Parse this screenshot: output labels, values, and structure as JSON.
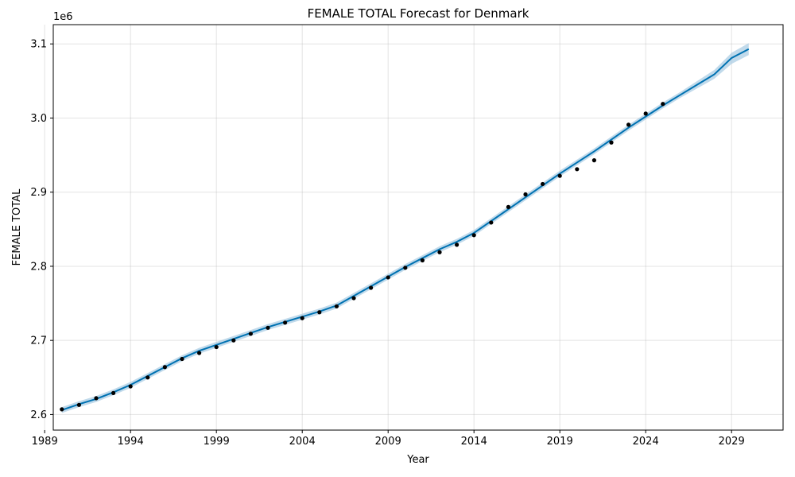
{
  "chart_data": {
    "type": "line",
    "title": "FEMALE TOTAL Forecast for Denmark",
    "xlabel": "Year",
    "ylabel": "FEMALE TOTAL",
    "y_offset_label": "1e6",
    "x_ticks": [
      "1989",
      "1994",
      "1999",
      "2004",
      "2009",
      "2014",
      "2019",
      "2024",
      "2029"
    ],
    "y_ticks": [
      "2.6",
      "2.7",
      "2.8",
      "2.9",
      "3.0",
      "3.1"
    ],
    "xlim": [
      1989.5,
      2032
    ],
    "ylim": [
      2579000,
      3126000
    ],
    "grid": true,
    "colors": {
      "forecast": "#0072B2",
      "interval": "#a6cbe3",
      "observed": "#000000"
    },
    "observed": {
      "x": [
        1990,
        1991,
        1992,
        1993,
        1994,
        1995,
        1996,
        1997,
        1998,
        1999,
        2000,
        2001,
        2002,
        2003,
        2004,
        2005,
        2006,
        2007,
        2008,
        2009,
        2010,
        2011,
        2012,
        2013,
        2014,
        2015,
        2016,
        2017,
        2018,
        2019,
        2020,
        2021,
        2022,
        2023,
        2024,
        2025
      ],
      "y": [
        2607000,
        2613000,
        2622000,
        2629000,
        2638000,
        2650000,
        2664000,
        2675000,
        2683000,
        2691000,
        2700000,
        2709000,
        2717000,
        2724000,
        2730000,
        2738000,
        2746000,
        2757000,
        2771000,
        2785000,
        2798000,
        2808000,
        2819000,
        2829000,
        2842000,
        2859000,
        2880000,
        2897000,
        2911000,
        2922000,
        2931000,
        2943000,
        2967000,
        2991000,
        3006000,
        3019000
      ]
    },
    "forecast": {
      "x": [
        1990,
        1991,
        1992,
        1993,
        1994,
        1995,
        1996,
        1997,
        1998,
        1999,
        2000,
        2001,
        2002,
        2003,
        2004,
        2005,
        2006,
        2007,
        2008,
        2009,
        2010,
        2011,
        2012,
        2013,
        2014,
        2015,
        2016,
        2017,
        2018,
        2019,
        2020,
        2021,
        2022,
        2023,
        2024,
        2025,
        2026,
        2027,
        2028,
        2029,
        2030
      ],
      "y": [
        2606000,
        2614000,
        2621000,
        2630000,
        2640000,
        2652000,
        2664000,
        2676000,
        2686000,
        2694000,
        2702000,
        2710000,
        2718000,
        2725000,
        2732000,
        2739000,
        2747000,
        2760000,
        2773000,
        2786000,
        2799000,
        2811000,
        2823000,
        2833000,
        2845000,
        2861000,
        2877000,
        2893000,
        2909000,
        2925000,
        2940000,
        2955000,
        2971000,
        2987000,
        3002000,
        3017000,
        3031000,
        3045000,
        3059000,
        3081000,
        3093000
      ],
      "lower": [
        2602000,
        2610000,
        2617000,
        2626000,
        2636000,
        2648000,
        2660000,
        2672000,
        2682000,
        2690000,
        2698000,
        2706000,
        2714000,
        2721000,
        2728000,
        2735000,
        2743000,
        2756000,
        2769000,
        2782000,
        2795000,
        2807000,
        2819000,
        2829000,
        2841000,
        2857000,
        2873000,
        2889000,
        2905000,
        2921000,
        2936000,
        2951000,
        2967000,
        2983000,
        2998000,
        3013000,
        3027000,
        3040000,
        3053000,
        3073000,
        3085000
      ],
      "upper": [
        2610000,
        2618000,
        2625000,
        2634000,
        2644000,
        2656000,
        2668000,
        2680000,
        2690000,
        2698000,
        2706000,
        2714000,
        2722000,
        2729000,
        2736000,
        2743000,
        2751000,
        2764000,
        2777000,
        2790000,
        2803000,
        2815000,
        2827000,
        2837000,
        2849000,
        2865000,
        2881000,
        2897000,
        2913000,
        2929000,
        2944000,
        2959000,
        2975000,
        2991000,
        3006000,
        3021000,
        3035000,
        3050000,
        3065000,
        3088000,
        3101000
      ]
    }
  }
}
